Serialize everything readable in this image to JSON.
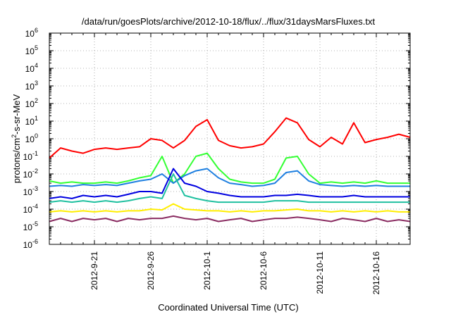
{
  "chart_data": {
    "type": "line",
    "title": "/data/run/goesPlots/archive/2012-10-18/flux/../flux/31daysMarsFluxes.txt",
    "xlabel": "Coordinated Universal Time (UTC)",
    "ylabel": {
      "pre": "protons/cm",
      "sup": "2",
      "post": "-s-sr-MeV"
    },
    "yscale": "log",
    "ylim": [
      1e-06,
      1000000.0
    ],
    "y_ticks": [
      {
        "exp": "-6",
        "v": 1e-06
      },
      {
        "exp": "-5",
        "v": 1e-05
      },
      {
        "exp": "-4",
        "v": 0.0001
      },
      {
        "exp": "-3",
        "v": 0.001
      },
      {
        "exp": "-2",
        "v": 0.01
      },
      {
        "exp": "-1",
        "v": 0.1
      },
      {
        "exp": "0",
        "v": 1
      },
      {
        "exp": "1",
        "v": 10
      },
      {
        "exp": "2",
        "v": 100
      },
      {
        "exp": "3",
        "v": 1000
      },
      {
        "exp": "4",
        "v": 10000
      },
      {
        "exp": "5",
        "v": 100000
      },
      {
        "exp": "6",
        "v": 1000000
      }
    ],
    "y_tick_base": "10",
    "xlim": [
      "2012-09-17",
      "2012-10-19"
    ],
    "x_ticks": [
      "2012-9-21",
      "2012-9-26",
      "2012-10-1",
      "2012-10-6",
      "2012-10-11",
      "2012-10-16"
    ],
    "grid": true,
    "x": [
      "2012-09-17",
      "2012-09-18",
      "2012-09-19",
      "2012-09-20",
      "2012-09-21",
      "2012-09-22",
      "2012-09-23",
      "2012-09-24",
      "2012-09-25",
      "2012-09-26",
      "2012-09-27",
      "2012-09-28",
      "2012-09-29",
      "2012-09-30",
      "2012-10-01",
      "2012-10-02",
      "2012-10-03",
      "2012-10-04",
      "2012-10-05",
      "2012-10-06",
      "2012-10-07",
      "2012-10-08",
      "2012-10-09",
      "2012-10-10",
      "2012-10-11",
      "2012-10-12",
      "2012-10-13",
      "2012-10-14",
      "2012-10-15",
      "2012-10-16",
      "2012-10-17",
      "2012-10-18",
      "2012-10-19"
    ],
    "series": [
      {
        "color": "#ff0000",
        "values": [
          0.08,
          0.3,
          0.2,
          0.15,
          0.25,
          0.3,
          0.25,
          0.3,
          0.35,
          1.0,
          0.8,
          0.3,
          0.8,
          5.0,
          12,
          0.8,
          0.4,
          0.3,
          0.35,
          0.5,
          2.5,
          15,
          8,
          0.9,
          0.35,
          1.2,
          0.5,
          8,
          0.6,
          0.9,
          1.2,
          1.8,
          1.2
        ]
      },
      {
        "color": "#33ff33",
        "values": [
          0.004,
          0.003,
          0.0035,
          0.003,
          0.003,
          0.0035,
          0.003,
          0.004,
          0.006,
          0.008,
          0.1,
          0.003,
          0.01,
          0.1,
          0.15,
          0.02,
          0.005,
          0.0035,
          0.003,
          0.003,
          0.005,
          0.08,
          0.1,
          0.01,
          0.003,
          0.0035,
          0.003,
          0.0035,
          0.003,
          0.004,
          0.003,
          0.003,
          0.003
        ]
      },
      {
        "color": "#1e7fe0",
        "values": [
          0.002,
          0.0022,
          0.002,
          0.0025,
          0.0022,
          0.0025,
          0.0022,
          0.003,
          0.004,
          0.005,
          0.01,
          0.003,
          0.008,
          0.015,
          0.02,
          0.006,
          0.003,
          0.0025,
          0.002,
          0.0022,
          0.003,
          0.012,
          0.015,
          0.004,
          0.0025,
          0.0022,
          0.002,
          0.0022,
          0.002,
          0.0022,
          0.002,
          0.002,
          0.002
        ]
      },
      {
        "color": "#0000e0",
        "values": [
          0.0004,
          0.0005,
          0.0004,
          0.0006,
          0.0005,
          0.0006,
          0.0005,
          0.0007,
          0.001,
          0.001,
          0.0008,
          0.02,
          0.003,
          0.002,
          0.001,
          0.0008,
          0.0006,
          0.0005,
          0.0005,
          0.0005,
          0.0006,
          0.0006,
          0.0007,
          0.0006,
          0.0005,
          0.0005,
          0.0005,
          0.0006,
          0.0005,
          0.0005,
          0.0005,
          0.0005,
          0.0005
        ]
      },
      {
        "color": "#20c0a0",
        "values": [
          0.00025,
          0.0003,
          0.00025,
          0.0003,
          0.00025,
          0.0003,
          0.00025,
          0.0003,
          0.0004,
          0.0005,
          0.0004,
          0.01,
          0.0006,
          0.0004,
          0.0003,
          0.00025,
          0.00025,
          0.00025,
          0.00025,
          0.00025,
          0.0003,
          0.0003,
          0.0003,
          0.00025,
          0.00025,
          0.00025,
          0.00025,
          0.00025,
          0.00025,
          0.00025,
          0.00025,
          0.00025,
          0.00025
        ]
      },
      {
        "color": "#ffee00",
        "values": [
          7e-05,
          8e-05,
          7e-05,
          8e-05,
          7e-05,
          8e-05,
          7e-05,
          8e-05,
          8e-05,
          0.0001,
          9e-05,
          0.0002,
          0.0001,
          9e-05,
          8e-05,
          8e-05,
          7e-05,
          8e-05,
          7e-05,
          8e-05,
          8e-05,
          9e-05,
          0.0001,
          8e-05,
          8e-05,
          7e-05,
          8e-05,
          7e-05,
          8e-05,
          7e-05,
          8e-05,
          7e-05,
          7e-05
        ]
      },
      {
        "color": "#8b2d62",
        "values": [
          2e-05,
          3e-05,
          2e-05,
          3e-05,
          2.5e-05,
          3e-05,
          2e-05,
          3e-05,
          2.5e-05,
          3e-05,
          3e-05,
          4e-05,
          3e-05,
          2.5e-05,
          3e-05,
          2e-05,
          2.5e-05,
          3e-05,
          2e-05,
          2.5e-05,
          3e-05,
          3e-05,
          3.5e-05,
          3e-05,
          2.5e-05,
          2e-05,
          3e-05,
          2.5e-05,
          2e-05,
          3e-05,
          2e-05,
          2.5e-05,
          2e-05
        ]
      }
    ]
  }
}
